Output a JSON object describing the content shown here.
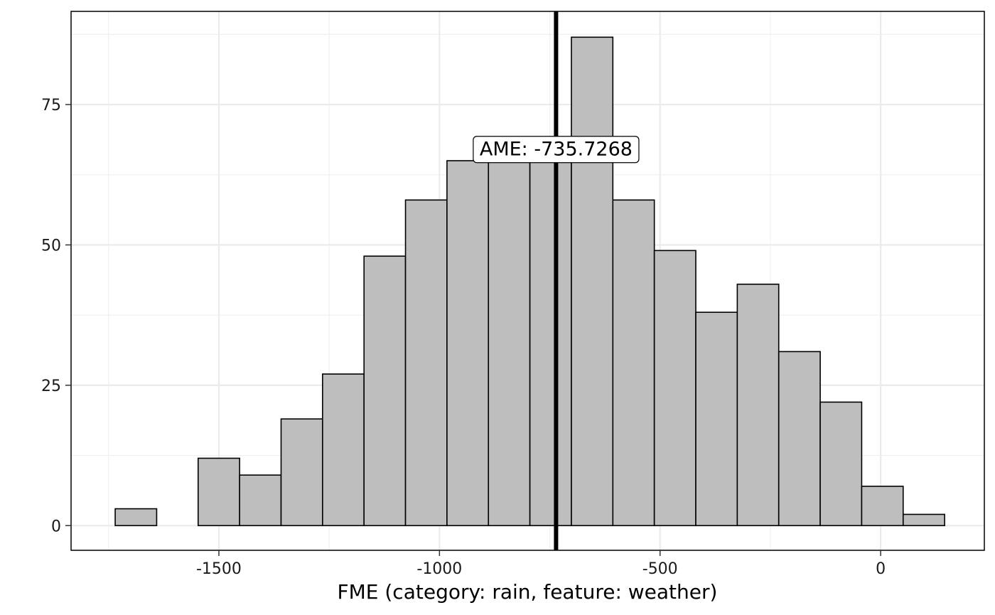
{
  "chart_data": {
    "type": "bar",
    "subtype": "histogram",
    "title": "",
    "xlabel": "FME (category: rain, feature: weather)",
    "ylabel": "",
    "x_ticks": [
      -1500,
      -1000,
      -500,
      0
    ],
    "x_tick_labels": [
      "-1500",
      "-1000",
      "-500",
      "0"
    ],
    "y_ticks": [
      0,
      25,
      50,
      75
    ],
    "y_tick_labels": [
      "0",
      "25",
      "50",
      "75"
    ],
    "xlim": [
      -1835,
      235
    ],
    "ylim": [
      -4.4,
      91.6
    ],
    "grid": true,
    "bin_edges": [
      -1735,
      -1641,
      -1547,
      -1453,
      -1359,
      -1265,
      -1171,
      -1077,
      -983,
      -889,
      -795,
      -701,
      -607,
      -513,
      -419,
      -325,
      -231,
      -137,
      -43,
      51,
      145
    ],
    "counts": [
      3,
      0,
      12,
      9,
      19,
      27,
      48,
      58,
      65,
      65,
      65,
      87,
      58,
      49,
      38,
      43,
      31,
      22,
      7,
      2
    ],
    "bar_fill": "#bebebe",
    "bar_stroke": "#000000",
    "vline": {
      "x": -735.7268,
      "color": "#000000"
    },
    "annotation": {
      "text": "AME: -735.7268",
      "x": -735.7268,
      "y": 67
    }
  }
}
